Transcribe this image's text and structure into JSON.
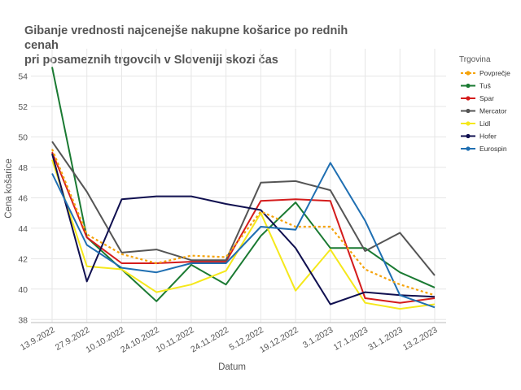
{
  "chart_data": {
    "type": "line",
    "title": "Gibanje vrednosti najcenejše nakupne košarice  po rednih cenah\n pri posameznih trgovcih v Sloveniji skozi čas",
    "xlabel": "Datum",
    "ylabel": "Cena košarice",
    "legend_title": "Trgovina",
    "legend_position": "right",
    "grid": true,
    "ylim": [
      37.8,
      55.8
    ],
    "yticks": [
      38,
      40,
      42,
      44,
      46,
      48,
      50,
      52,
      54
    ],
    "categories": [
      "13.9.2022",
      "27.9.2022",
      "10.10.2022",
      "24.10.2022",
      "10.11.2022",
      "24.11.2022",
      "5.12.2022",
      "19.12.2022",
      "3.1.2023",
      "17.1.2023",
      "31.1.2023",
      "13.2.2023"
    ],
    "series": [
      {
        "name": "Povprečje",
        "color": "#f5a30a",
        "dashed": true,
        "values": [
          49.2,
          43.6,
          42.3,
          41.7,
          42.2,
          42.1,
          45.1,
          44.1,
          44.1,
          41.3,
          40.3,
          39.6
        ]
      },
      {
        "name": "Tuš",
        "color": "#1a7a32",
        "values": [
          54.6,
          43.4,
          41.3,
          39.2,
          41.6,
          40.3,
          43.5,
          45.7,
          42.7,
          42.7,
          41.1,
          40.1
        ]
      },
      {
        "name": "Spar",
        "color": "#d41c1c",
        "values": [
          49.0,
          43.4,
          41.7,
          41.7,
          41.8,
          41.8,
          45.8,
          45.9,
          45.8,
          39.4,
          39.1,
          39.4
        ]
      },
      {
        "name": "Mercator",
        "color": "#555555",
        "values": [
          49.7,
          46.4,
          42.4,
          42.6,
          41.9,
          41.9,
          47.0,
          47.1,
          46.5,
          42.5,
          43.7,
          40.9
        ]
      },
      {
        "name": "Lidl",
        "color": "#f5e81c",
        "values": [
          48.5,
          41.5,
          41.3,
          39.8,
          40.3,
          41.2,
          45.0,
          39.9,
          42.6,
          39.1,
          38.7,
          39.0
        ]
      },
      {
        "name": "Hofer",
        "color": "#101050",
        "values": [
          48.9,
          40.5,
          45.9,
          46.1,
          46.1,
          45.6,
          45.2,
          42.7,
          39.0,
          39.8,
          39.6,
          39.5
        ]
      },
      {
        "name": "Eurospin",
        "color": "#1f6fb2",
        "values": [
          47.6,
          42.9,
          41.4,
          41.1,
          41.7,
          41.7,
          44.1,
          43.9,
          48.3,
          44.5,
          39.6,
          38.8
        ]
      }
    ]
  }
}
